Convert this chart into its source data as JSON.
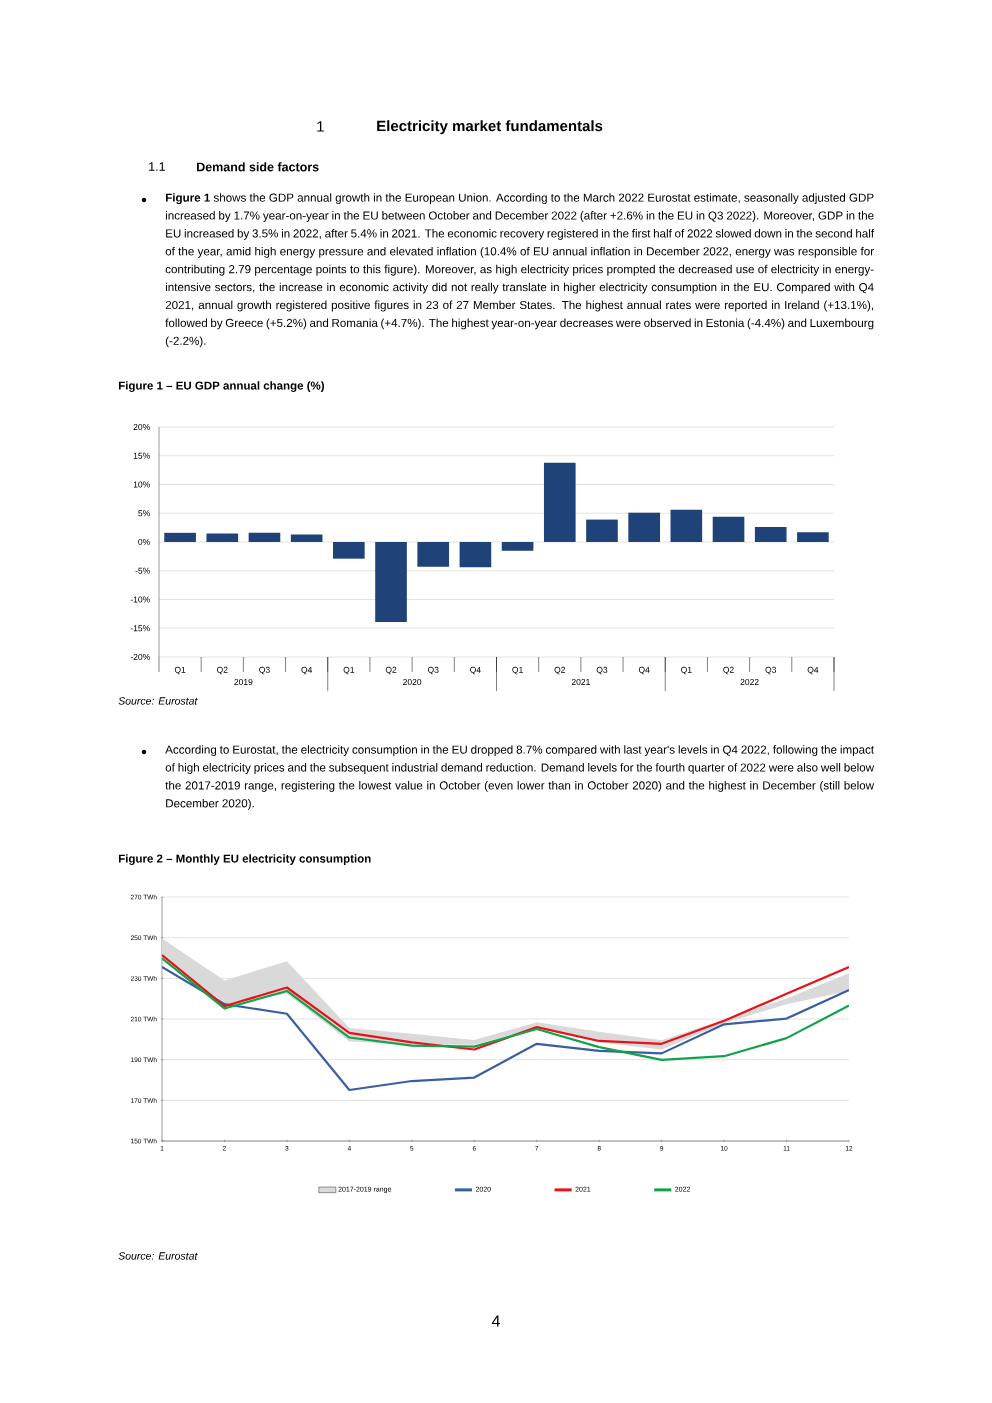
{
  "chart_data": [
    {
      "type": "bar",
      "title": "Figure 1 – EU GDP annual change (%)",
      "annotations": [
        "1",
        "Electricity market fundamentals",
        "1.1",
        "Demand side factors",
        "**Figure 1** shows the GDP annual growth in the European Union. According to the March 2022 Eurostat estimate, seasonally adjusted GDP increased by 1.7% year-on-year in the EU between October and December 2022 (after +2.6% in the EU in Q3 2022). Moreover, GDP in the EU increased by 3.5% in 2022, after 5.4% in 2021. The economic recovery registered in the first half of 2022 slowed down in the second half of the year, amid high energy pressure and elevated inflation (10.4% of EU annual inflation in December 2022, energy was responsible for contributing 2.79 percentage points to this figure). Moreover, as high electricity prices prompted the decreased use of electricity in energy-intensive sectors, the increase in economic activity did not really translate in higher electricity consumption in the EU. Compared with Q4 2021, annual growth registered positive figures in 23 of 27 Member States. The highest annual rates were reported in Ireland (+13.1%), followed by Greece (+5.2%) and Romania (+4.7%). The highest year-on-year decreases were observed in Estonia (-4.4%) and Luxembourg (-2.2%).",
        "2019",
        "2020",
        "2021",
        "2022",
        "Source: Eurostat"
      ],
      "categories": [
        "Q1",
        "Q2",
        "Q3",
        "Q4",
        "Q1",
        "Q2",
        "Q3",
        "Q4",
        "Q1",
        "Q2",
        "Q3",
        "Q4",
        "Q1",
        "Q2",
        "Q3",
        "Q4"
      ],
      "values": [
        1.6,
        1.5,
        1.6,
        1.3,
        -2.9,
        -13.9,
        -4.3,
        -4.4,
        -1.5,
        13.8,
        3.9,
        5.1,
        5.6,
        4.4,
        2.6,
        1.7
      ],
      "color": "#1f4279",
      "ylim": [
        -20,
        20
      ],
      "yticks": [
        {
          "value": -20,
          "label": "-20%"
        },
        {
          "value": -15,
          "label": "-15%"
        },
        {
          "value": -10,
          "label": "-10%"
        },
        {
          "value": -5,
          "label": "-5%"
        },
        {
          "value": 0,
          "label": "0%"
        },
        {
          "value": 5,
          "label": "5%"
        },
        {
          "value": 10,
          "label": "10%"
        },
        {
          "value": 15,
          "label": "15%"
        },
        {
          "value": 20,
          "label": "20%"
        }
      ],
      "grid": "y"
    },
    {
      "type": "line",
      "title": "Figure 2 – Monthly EU electricity consumption",
      "annotations": [
        "According to Eurostat, the electricity consumption in the EU dropped 8.7% compared with last year's levels in Q4 2022, following the impact of high electricity prices and the subsequent industrial demand reduction. Demand levels for the fourth quarter of 2022 were also well below the 2017-2019 range, registering the lowest value in October (even lower than in October 2020) and the highest in December (still below December 2020).",
        "Source: Eurostat",
        "4"
      ],
      "x": [
        1,
        2,
        3,
        4,
        5,
        6,
        7,
        8,
        9,
        10,
        11,
        12
      ],
      "series": [
        {
          "name": "2017-2019 range",
          "type": "area",
          "color": "#d9d9d9",
          "values": [
            null,
            null,
            null,
            null,
            null,
            null,
            null,
            null,
            null,
            null,
            null,
            null
          ],
          "lower": [
            240.7,
            217,
            222.4,
            199.0,
            197.3,
            197.3,
            205.6,
            198.5,
            195.0,
            207.9,
            217.3,
            223.8
          ],
          "upper": [
            249.6,
            229.0,
            238.4,
            205.6,
            202.7,
            199.7,
            208.4,
            203.7,
            199.5,
            209.8,
            220.1,
            232.5
          ]
        },
        {
          "name": "2020",
          "type": "line",
          "color": "#3a5fa0",
          "values": [
            235.6,
            217.3,
            212.6,
            175.1,
            179.5,
            181.2,
            197.8,
            194.3,
            193.1,
            207.4,
            210.2,
            224.3
          ]
        },
        {
          "name": "2021",
          "type": "line",
          "color": "#e8121a",
          "values": [
            241.4,
            216.3,
            225.5,
            203.2,
            198.5,
            195.0,
            206.0,
            199.2,
            197.8,
            209.1,
            222.4,
            235.6
          ]
        },
        {
          "name": "2022",
          "type": "line",
          "color": "#12a24a",
          "values": [
            239.8,
            215.2,
            223.8,
            200.9,
            196.9,
            196.4,
            205.1,
            196.2,
            189.9,
            191.7,
            200.6,
            216.6
          ]
        }
      ],
      "xlim": [
        1,
        12
      ],
      "xticks": [
        1,
        2,
        3,
        4,
        5,
        6,
        7,
        8,
        9,
        10,
        11,
        12
      ],
      "ylim": [
        150,
        270
      ],
      "yticks": [
        {
          "value": 150,
          "label": "150 TWh"
        },
        {
          "value": 170,
          "label": "170 TWh"
        },
        {
          "value": 190,
          "label": "190 TWh"
        },
        {
          "value": 210,
          "label": "210 TWh"
        },
        {
          "value": 230,
          "label": "230 TWh"
        },
        {
          "value": 250,
          "label": "250 TWh"
        },
        {
          "value": 270,
          "label": "270 TWh"
        }
      ],
      "grid": "y",
      "legend": "bottom",
      "marker": "none"
    }
  ]
}
